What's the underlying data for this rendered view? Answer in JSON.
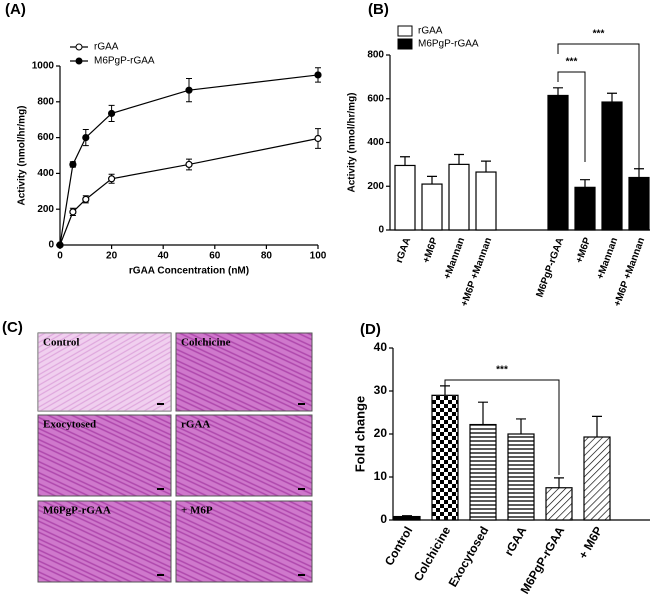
{
  "chart_data": [
    {
      "type": "line",
      "panel": "(A)",
      "y_label": "Activity (nmol/hr/mg)",
      "x_label": "rGAA Concentration (nM)",
      "x": [
        0,
        5,
        10,
        20,
        50,
        100
      ],
      "series": [
        {
          "name": "rGAA",
          "color": "#000000",
          "marker": "open",
          "values": [
            0,
            185,
            255,
            370,
            450,
            595
          ],
          "errors": [
            0,
            20,
            20,
            25,
            30,
            55
          ]
        },
        {
          "name": "M6PgP-rGAA",
          "color": "#000000",
          "marker": "filled",
          "values": [
            0,
            450,
            600,
            735,
            865,
            950
          ],
          "errors": [
            0,
            15,
            45,
            45,
            65,
            40
          ]
        }
      ],
      "xlim": [
        0,
        100
      ],
      "xticks": [
        0,
        20,
        40,
        60,
        80,
        100
      ],
      "ylim": [
        0,
        1000
      ],
      "yticks": [
        0,
        200,
        400,
        600,
        800,
        1000
      ],
      "legend": "upper left"
    },
    {
      "type": "bar",
      "panel": "(B)",
      "y_label": "Activity (nmol/hr/mg)",
      "categories": [
        "rGAA",
        "+M6P",
        "+Mannan",
        "+M6P +Mannan",
        "M6PgP-rGAA",
        "+M6P",
        "+Mannan",
        "+M6P +Mannan"
      ],
      "series": [
        {
          "name": "rGAA",
          "color": "#ffffff",
          "values": [
            295,
            210,
            300,
            265,
            null,
            null,
            null,
            null
          ],
          "errors": [
            40,
            35,
            45,
            50,
            null,
            null,
            null,
            null
          ]
        },
        {
          "name": "M6PgP-rGAA",
          "color": "#000000",
          "values": [
            null,
            null,
            null,
            null,
            615,
            195,
            585,
            240
          ],
          "errors": [
            null,
            null,
            null,
            null,
            35,
            35,
            40,
            40
          ]
        }
      ],
      "ylim": [
        0,
        800
      ],
      "yticks": [
        0,
        200,
        400,
        600,
        800
      ],
      "annotations": [
        "***",
        "***"
      ],
      "legend": "upper left"
    },
    {
      "type": "bar",
      "panel": "(D)",
      "y_label": "Fold change",
      "categories": [
        "Control",
        "Colchicine",
        "Exocytosed",
        "rGAA",
        "M6PgP-rGAA",
        "+ M6P"
      ],
      "values": [
        0.8,
        29,
        22.2,
        20,
        7.5,
        19.3
      ],
      "errors": [
        0.2,
        2.2,
        5.2,
        3.5,
        2.3,
        4.8
      ],
      "patterns": [
        "solid",
        "checker",
        "hlines",
        "hlines",
        "diagonal",
        "diagonal"
      ],
      "ylim": [
        0,
        40
      ],
      "yticks": [
        0,
        10,
        20,
        30,
        40
      ],
      "annotations": [
        "***"
      ]
    }
  ],
  "images": {
    "panel": "(C)",
    "tiles": [
      "Control",
      "Colchicine",
      "Exocytosed",
      "rGAA",
      "M6PgP-rGAA",
      "+ M6P"
    ]
  }
}
